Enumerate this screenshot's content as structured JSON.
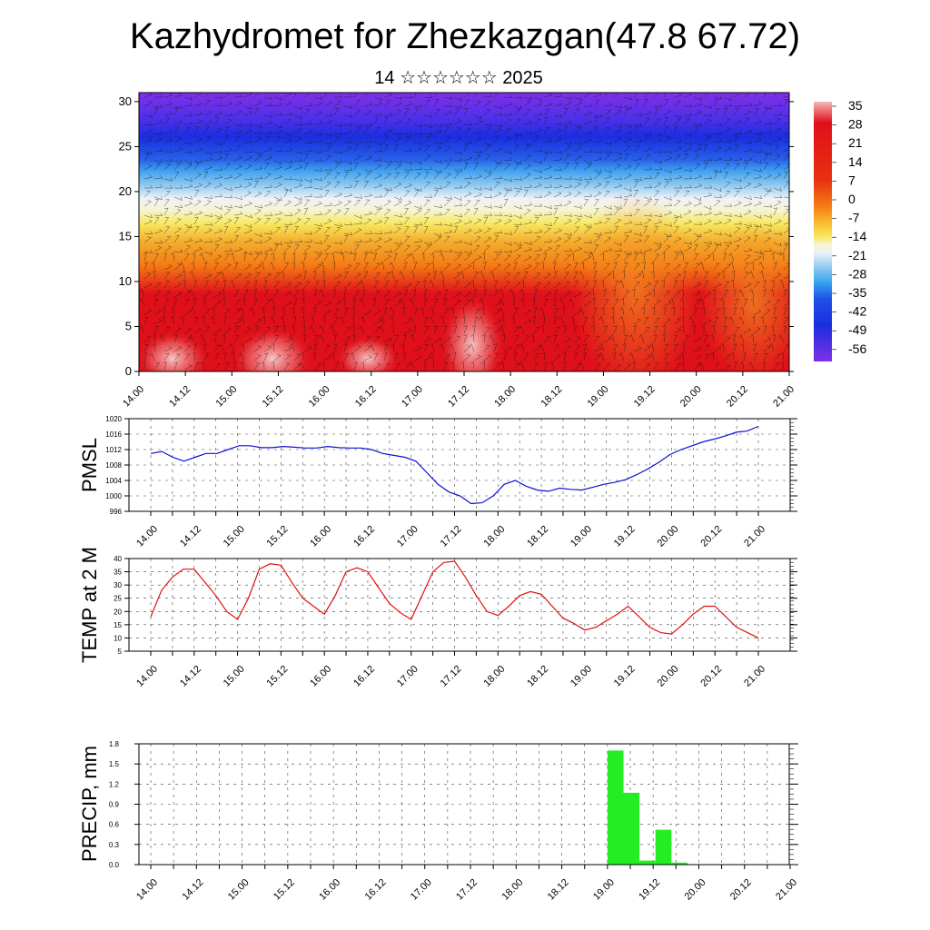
{
  "header": {
    "title": "Kazhydromet for Zhezkazgan(47.8 67.72)",
    "subtitle": "14 ☆☆☆☆☆☆ 2025"
  },
  "time_labels": [
    "14.00",
    "14.12",
    "15.00",
    "15.12",
    "16.00",
    "16.12",
    "17.00",
    "17.12",
    "18.00",
    "18.12",
    "19.00",
    "19.12",
    "20.00",
    "20.12",
    "21.00"
  ],
  "chart_data": [
    {
      "type": "heatmap",
      "name": "cross-section",
      "x_labels": [
        "14.00",
        "14.12",
        "15.00",
        "15.12",
        "16.00",
        "16.12",
        "17.00",
        "17.12",
        "18.00",
        "18.12",
        "19.00",
        "19.12",
        "20.00",
        "20.12",
        "21.00"
      ],
      "y_ticks": [
        0,
        5,
        10,
        15,
        20,
        25,
        30
      ],
      "ylim": [
        0,
        31
      ],
      "colorbar_labels": [
        "35",
        "28",
        "21",
        "14",
        "7",
        "0",
        "-7",
        "-14",
        "-21",
        "-28",
        "-35",
        "-42",
        "-49",
        "-56"
      ],
      "colors": {
        "hot": "#f4b8b8",
        "red": "#e0101a",
        "orange": "#f57a14",
        "yellow": "#f8e860",
        "pale": "#eef2f8",
        "lightblue": "#8cc8f0",
        "blue": "#2040e8",
        "violet": "#8030e8"
      }
    },
    {
      "type": "line",
      "ylabel": "PMSL",
      "y_ticks": [
        996,
        1000,
        1004,
        1008,
        1012,
        1016,
        1020
      ],
      "ylim": [
        996,
        1020
      ],
      "color": "#1010d0",
      "values": [
        1011,
        1011.5,
        1010,
        1009,
        1010,
        1011,
        1011,
        1012,
        1013,
        1013,
        1012.5,
        1012.5,
        1012.8,
        1012.6,
        1012.4,
        1012.4,
        1012.8,
        1012.5,
        1012.4,
        1012.4,
        1012,
        1011,
        1010.5,
        1010,
        1009,
        1006,
        1003,
        1001,
        1000,
        998,
        998.2,
        1000,
        1003,
        1004,
        1002.5,
        1001.5,
        1001.2,
        1002,
        1001.7,
        1001.5,
        1002.2,
        1003,
        1003.5,
        1004.2,
        1005.5,
        1007,
        1008.7,
        1010.7,
        1012,
        1013,
        1014,
        1014.7,
        1015.5,
        1016.5,
        1016.8,
        1018
      ]
    },
    {
      "type": "line",
      "ylabel": "TEMP at 2 M",
      "y_ticks": [
        5,
        10,
        15,
        20,
        25,
        30,
        35,
        40
      ],
      "ylim": [
        5,
        40
      ],
      "color": "#e01010",
      "values": [
        18,
        28,
        33,
        36,
        36,
        31,
        26,
        20,
        17,
        25,
        36,
        38,
        37.5,
        31,
        25,
        22,
        19,
        26,
        35,
        36.5,
        35,
        29,
        23,
        19.5,
        17,
        26,
        35,
        38.5,
        39,
        33,
        26,
        20,
        18.5,
        22,
        26,
        27.5,
        26.5,
        22,
        17.5,
        15.5,
        13,
        14,
        16.5,
        19,
        22,
        18,
        14,
        12,
        11.5,
        15,
        19,
        22,
        22,
        18,
        14,
        12,
        10
      ]
    },
    {
      "type": "bar",
      "ylabel": "PRECIP, mm",
      "y_ticks": [
        "0.0",
        "0.3",
        "0.6",
        "0.9",
        "1.2",
        "1.5",
        "1.8"
      ],
      "ylim": [
        0,
        1.8
      ],
      "color": "#22ee22",
      "bars": [
        {
          "start": 20,
          "end": 21,
          "value": 1.7
        },
        {
          "start": 21,
          "end": 22,
          "value": 1.07
        },
        {
          "start": 22,
          "end": 23,
          "value": 0.06
        },
        {
          "start": 23,
          "end": 24,
          "value": 0.52
        },
        {
          "start": 24,
          "end": 25,
          "value": 0.03
        }
      ]
    }
  ]
}
